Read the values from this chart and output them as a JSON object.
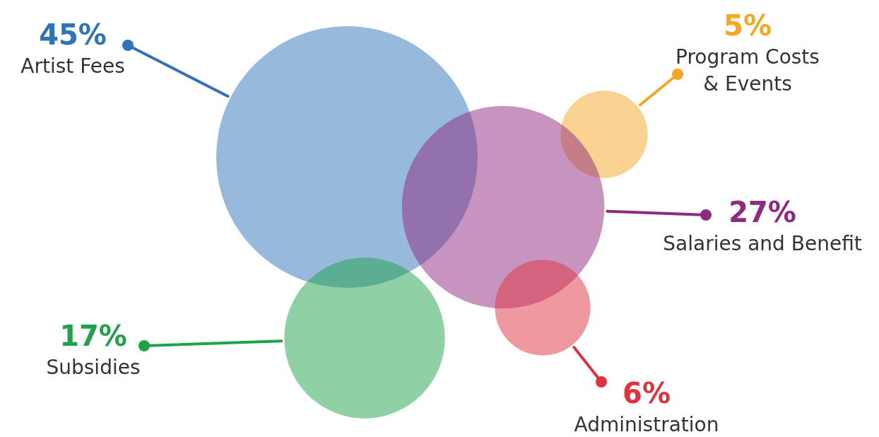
{
  "chart_data": {
    "type": "other",
    "categories": [
      "Artist Fees",
      "Program Costs & Events",
      "Salaries and Benefit",
      "Administration",
      "Subsidies"
    ],
    "values": [
      45,
      5,
      27,
      6,
      17
    ],
    "value_labels": [
      "45%",
      "5%",
      "27%",
      "6%",
      "17%"
    ],
    "colors": [
      "#2f73b8",
      "#f5a623",
      "#8e2a7f",
      "#e0313f",
      "#1fa34a"
    ],
    "legend": false
  }
}
